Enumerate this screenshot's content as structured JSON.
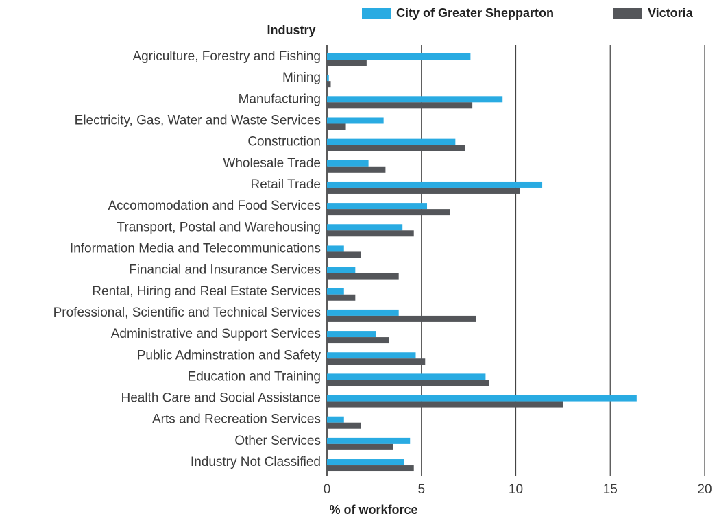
{
  "chart_data": {
    "type": "hbar",
    "y_axis_label": "Industry",
    "x_axis_label": "% of workforce",
    "categories": [
      "Agriculture, Forestry and Fishing",
      "Mining",
      "Manufacturing",
      "Electricity, Gas, Water and Waste Services",
      "Construction",
      "Wholesale Trade",
      "Retail Trade",
      "Accomomodation and Food Services",
      "Transport, Postal and Warehousing",
      "Information Media and Telecommunications",
      "Financial and Insurance Services",
      "Rental, Hiring and Real Estate Services",
      "Professional, Scientific and Technical Services",
      "Administrative and Support Services",
      "Public Adminstration and Safety",
      "Education and Training",
      "Health Care and Social Assistance",
      "Arts and Recreation Services",
      "Other Services",
      "Industry Not Classified"
    ],
    "series": [
      {
        "name": "City of Greater Shepparton",
        "color": "#29abe2",
        "values": [
          7.6,
          0.1,
          9.3,
          3.0,
          6.8,
          2.2,
          11.4,
          5.3,
          4.0,
          0.9,
          1.5,
          0.9,
          3.8,
          2.6,
          4.7,
          8.4,
          16.4,
          0.9,
          4.4,
          4.1
        ]
      },
      {
        "name": "Victoria",
        "color": "#54565a",
        "values": [
          2.1,
          0.2,
          7.7,
          1.0,
          7.3,
          3.1,
          10.2,
          6.5,
          4.6,
          1.8,
          3.8,
          1.5,
          7.9,
          3.3,
          5.2,
          8.6,
          12.5,
          1.8,
          3.5,
          4.6
        ]
      }
    ],
    "xlim": [
      0,
      20
    ],
    "xticks": [
      0,
      5,
      10,
      15,
      20
    ],
    "grid": true,
    "legend": "top-right"
  }
}
